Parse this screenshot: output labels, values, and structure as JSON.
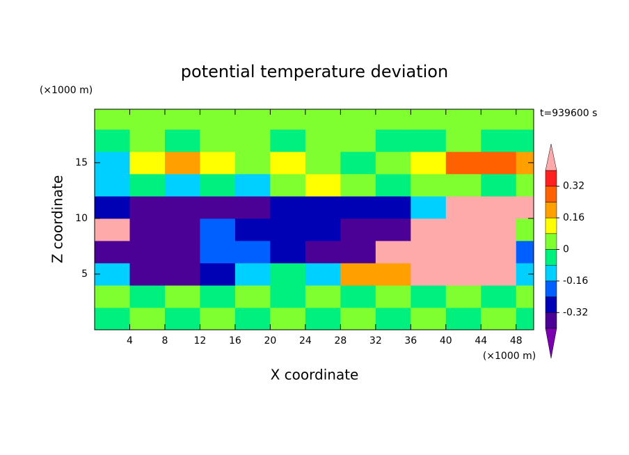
{
  "chart_data": {
    "type": "contour",
    "title": "potential temperature deviation",
    "x_label": "X coordinate",
    "y_label": "Z coordinate",
    "x_unit": "(×1000 m)",
    "y_unit": "(×1000 m)",
    "annotation": "t=939600 s",
    "xlim": [
      0,
      50
    ],
    "ylim": [
      0,
      19.8
    ],
    "xticks": [
      4,
      8,
      12,
      16,
      20,
      24,
      28,
      32,
      36,
      40,
      44,
      48
    ],
    "yticks": [
      5,
      10,
      15
    ],
    "x": [
      2,
      6,
      10,
      14,
      18,
      22,
      26,
      30,
      34,
      38,
      42,
      46,
      50
    ],
    "y": [
      1,
      3,
      5,
      7,
      9,
      11,
      13,
      15,
      17,
      19
    ],
    "z": [
      [
        -0.04,
        0.04,
        -0.04,
        0.04,
        -0.04,
        0.04,
        -0.04,
        0.04,
        -0.04,
        0.04,
        -0.04,
        0.04,
        -0.04
      ],
      [
        0.04,
        -0.04,
        0.04,
        -0.04,
        0.04,
        -0.04,
        0.04,
        -0.04,
        0.04,
        -0.04,
        0.04,
        -0.04,
        0.04
      ],
      [
        -0.12,
        -0.36,
        -0.36,
        -0.28,
        -0.12,
        -0.04,
        -0.12,
        0.2,
        0.2,
        0.5,
        0.5,
        0.5,
        -0.12
      ],
      [
        -0.36,
        -0.36,
        -0.36,
        -0.2,
        -0.2,
        -0.28,
        -0.36,
        -0.36,
        0.5,
        0.5,
        0.5,
        0.5,
        -0.2
      ],
      [
        0.5,
        -0.36,
        -0.36,
        -0.2,
        -0.28,
        -0.28,
        -0.28,
        -0.36,
        -0.36,
        0.5,
        0.5,
        0.5,
        0.04
      ],
      [
        -0.28,
        -0.36,
        -0.36,
        -0.36,
        -0.36,
        -0.28,
        -0.28,
        -0.28,
        -0.28,
        -0.12,
        0.5,
        0.5,
        0.5
      ],
      [
        -0.12,
        -0.04,
        -0.12,
        -0.04,
        -0.12,
        0.04,
        0.12,
        0.04,
        -0.04,
        0.04,
        0.04,
        -0.04,
        0.04
      ],
      [
        -0.12,
        0.12,
        0.2,
        0.12,
        0.04,
        0.12,
        0.04,
        -0.04,
        0.04,
        0.12,
        0.28,
        0.28,
        0.2
      ],
      [
        -0.04,
        0.04,
        -0.04,
        0.04,
        0.04,
        -0.04,
        0.04,
        0.04,
        -0.04,
        -0.04,
        0.04,
        -0.04,
        -0.04
      ],
      [
        0.04,
        0.04,
        0.04,
        0.04,
        0.04,
        0.04,
        0.04,
        0.04,
        0.04,
        0.04,
        0.04,
        0.04,
        0.04
      ]
    ],
    "levels": [
      -0.4,
      -0.32,
      -0.24,
      -0.16,
      -0.08,
      0,
      0.08,
      0.16,
      0.24,
      0.32,
      0.4
    ],
    "colors": [
      "#7a00b0",
      "#4b0096",
      "#0000b4",
      "#0060ff",
      "#00d0ff",
      "#00f080",
      "#80ff30",
      "#ffff00",
      "#ffa000",
      "#ff6000",
      "#ff2020",
      "#ffaaaa"
    ],
    "cbar_ticks": [
      -0.32,
      -0.16,
      0,
      0.16,
      0.32
    ]
  }
}
